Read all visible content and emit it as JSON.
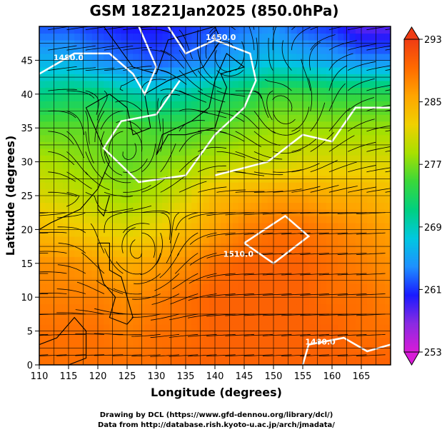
{
  "chart_data": {
    "type": "heatmap",
    "title": "GSM 18Z21Jan2025 (850.0hPa)",
    "xlabel": "Longitude (degrees)",
    "ylabel": "Latitude  (degrees)",
    "xlim": [
      110,
      170
    ],
    "ylim": [
      0,
      50
    ],
    "xticks": [
      "110",
      "115",
      "120",
      "125",
      "130",
      "135",
      "140",
      "145",
      "150",
      "155",
      "160",
      "165"
    ],
    "yticks": [
      "0",
      "5",
      "10",
      "15",
      "20",
      "25",
      "30",
      "35",
      "40",
      "45"
    ],
    "colorbar": {
      "min": 253,
      "max": 293,
      "tick_labels": [
        "293",
        "285",
        "277",
        "269",
        "261",
        "253"
      ],
      "colors": [
        "#d81bd8",
        "#8a2be2",
        "#1a1aff",
        "#1e90ff",
        "#00c8e0",
        "#00d080",
        "#3ad83a",
        "#a8e000",
        "#f0d000",
        "#ffa500",
        "#ff6a00",
        "#f03c14"
      ]
    },
    "temperature_rows": [
      {
        "lat": 50,
        "values": [
          262,
          262,
          261,
          260,
          260,
          261,
          262,
          263,
          264,
          262,
          261,
          258,
          258
        ]
      },
      {
        "lat": 45,
        "values": [
          266,
          266,
          264,
          263,
          262,
          263,
          264,
          266,
          267,
          266,
          265,
          264,
          264
        ]
      },
      {
        "lat": 40,
        "values": [
          271,
          272,
          272,
          270,
          269,
          270,
          272,
          273,
          275,
          275,
          274,
          274,
          274
        ]
      },
      {
        "lat": 35,
        "values": [
          276,
          276,
          276,
          276,
          275,
          275,
          276,
          277,
          278,
          278,
          278,
          278,
          278
        ]
      },
      {
        "lat": 30,
        "values": [
          279,
          278,
          277,
          276,
          277,
          278,
          279,
          280,
          280,
          281,
          281,
          281,
          281
        ]
      },
      {
        "lat": 25,
        "values": [
          281,
          280,
          279,
          278,
          279,
          281,
          284,
          285,
          286,
          286,
          285,
          285,
          284
        ]
      },
      {
        "lat": 20,
        "values": [
          284,
          283,
          282,
          281,
          282,
          284,
          286,
          288,
          289,
          289,
          288,
          287,
          286
        ]
      },
      {
        "lat": 15,
        "values": [
          287,
          287,
          286,
          285,
          286,
          287,
          289,
          290,
          290,
          290,
          289,
          288,
          287
        ]
      },
      {
        "lat": 10,
        "values": [
          288,
          288,
          288,
          287,
          288,
          289,
          290,
          290,
          290,
          290,
          289,
          289,
          288
        ]
      },
      {
        "lat": 5,
        "values": [
          289,
          289,
          289,
          288,
          289,
          289,
          290,
          290,
          290,
          290,
          290,
          289,
          289
        ]
      },
      {
        "lat": 0,
        "values": [
          289,
          289,
          289,
          289,
          289,
          290,
          290,
          290,
          290,
          290,
          290,
          290,
          290
        ]
      }
    ],
    "contour_labels": [
      "1480.0",
      "1450.0",
      "1510.0",
      "1480.0"
    ],
    "grid": true
  },
  "footer": {
    "line1": "Drawing by DCL (https://www.gfd-dennou.org/library/dcl/)",
    "line2": "Data from http://database.rish.kyoto-u.ac.jp/arch/jmadata/"
  }
}
